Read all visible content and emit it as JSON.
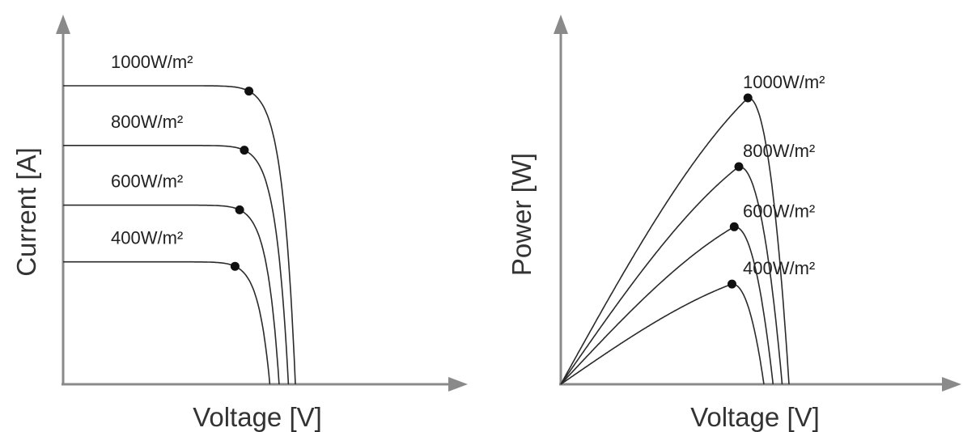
{
  "chart_data": [
    {
      "type": "line",
      "title": "",
      "xlabel": "Voltage [V]",
      "ylabel": "Current [A]",
      "grid": false,
      "series": [
        {
          "name": "1000W/m²",
          "isc": 1.0,
          "voc": 1.0,
          "mpp_v": 0.8,
          "mpp_i": 0.93
        },
        {
          "name": "800W/m²",
          "isc": 0.8,
          "voc": 0.97,
          "mpp_v": 0.78,
          "mpp_i": 0.73
        },
        {
          "name": "600W/m²",
          "isc": 0.6,
          "voc": 0.93,
          "mpp_v": 0.76,
          "mpp_i": 0.54
        },
        {
          "name": "400W/m²",
          "isc": 0.41,
          "voc": 0.89,
          "mpp_v": 0.74,
          "mpp_i": 0.36
        }
      ]
    },
    {
      "type": "line",
      "title": "",
      "xlabel": "Voltage [V]",
      "ylabel": "Power [W]",
      "grid": false,
      "series": [
        {
          "name": "1000W/m²",
          "voc": 1.0,
          "mpp_v": 0.82,
          "mpp_p": 1.0
        },
        {
          "name": "800W/m²",
          "voc": 0.97,
          "mpp_v": 0.78,
          "mpp_p": 0.76
        },
        {
          "name": "600W/m²",
          "voc": 0.93,
          "mpp_v": 0.76,
          "mpp_p": 0.55
        },
        {
          "name": "400W/m²",
          "voc": 0.89,
          "mpp_v": 0.75,
          "mpp_p": 0.35
        }
      ]
    }
  ]
}
